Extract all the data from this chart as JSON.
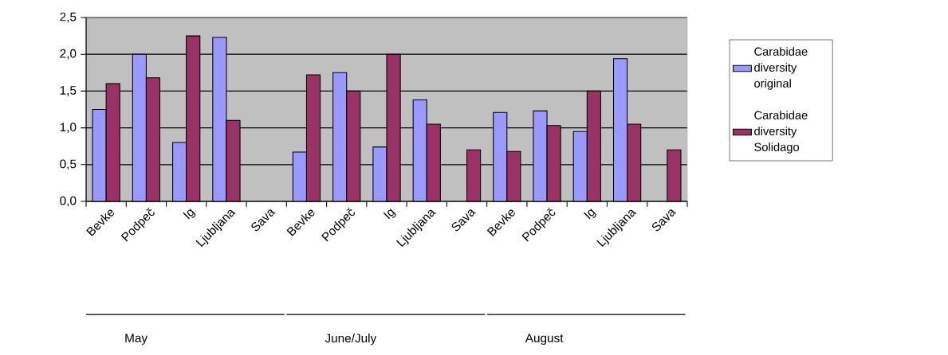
{
  "chart_data": {
    "type": "bar",
    "categories": [
      "Bevke",
      "Podpeč",
      "Ig",
      "Ljubljana",
      "Sava",
      "Bevke",
      "Podpeč",
      "Ig",
      "Ljubljana",
      "Sava",
      "Bevke",
      "Podpeč",
      "Ig",
      "Ljubljana",
      "Sava"
    ],
    "series": [
      {
        "name": "Carabidae diversity original",
        "color": "#9999ff",
        "values": [
          1.25,
          2.0,
          0.8,
          2.23,
          null,
          0.67,
          1.75,
          0.74,
          1.38,
          null,
          1.21,
          1.23,
          0.95,
          1.94,
          null
        ]
      },
      {
        "name": "Carabidae diversity Solidago",
        "color": "#993366",
        "values": [
          1.6,
          1.68,
          2.25,
          1.1,
          null,
          1.72,
          1.5,
          2.0,
          1.05,
          0.7,
          0.68,
          1.03,
          1.5,
          1.05,
          0.7
        ]
      }
    ],
    "ylim": [
      0,
      2.5
    ],
    "yticks": [
      {
        "value": 0,
        "label": "0,0"
      },
      {
        "value": 0.5,
        "label": "0,5"
      },
      {
        "value": 1.0,
        "label": "1,0"
      },
      {
        "value": 1.5,
        "label": "1,5"
      },
      {
        "value": 2.0,
        "label": "2,0"
      },
      {
        "value": 2.5,
        "label": "2,5"
      }
    ],
    "grid": "y",
    "legend": "right",
    "annotations": [
      "May",
      "June/July",
      "August"
    ]
  }
}
